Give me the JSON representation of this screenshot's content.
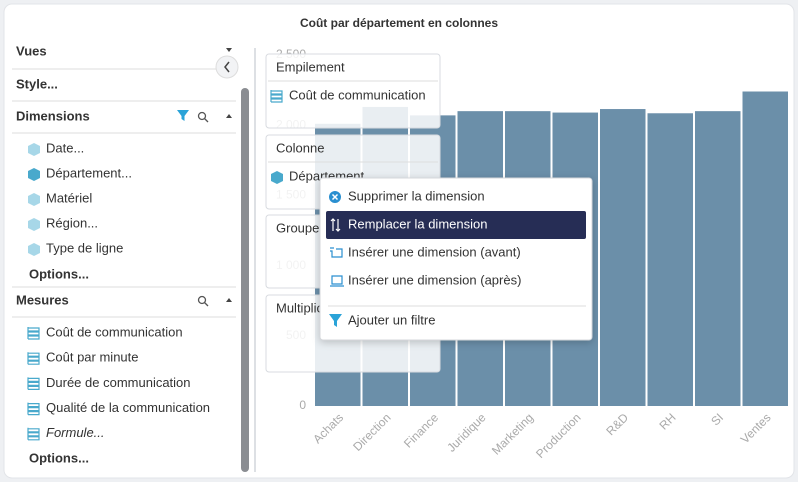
{
  "header": {
    "title": "Coût par département en colonnes"
  },
  "sidebar": {
    "vues": "Vues",
    "style": "Style...",
    "dimensions": {
      "title": "Dimensions",
      "items": [
        "Date...",
        "Département...",
        "Matériel",
        "Région...",
        "Type de ligne"
      ],
      "options": "Options..."
    },
    "mesures": {
      "title": "Mesures",
      "items": [
        "Coût de communication",
        "Coût par minute",
        "Durée de communication",
        "Qualité de la communication",
        "Formule..."
      ],
      "options": "Options..."
    }
  },
  "drop_zones": [
    {
      "label": "Empilement",
      "item": "Coût de communication"
    },
    {
      "label": "Colonne",
      "item": "Département"
    },
    {
      "label": "Groupement"
    },
    {
      "label": "Multiplicateur"
    }
  ],
  "context_menu": {
    "items": [
      "Supprimer la dimension",
      "Remplacer la dimension",
      "Insérer une dimension (avant)",
      "Insérer une dimension (après)",
      "Ajouter un filtre"
    ]
  },
  "chart_data": {
    "type": "bar",
    "categories": [
      "Achats",
      "Direction",
      "Finance",
      "Juridique",
      "Marketing",
      "Production",
      "R&D",
      "RH",
      "SI",
      "Ventes"
    ],
    "values": [
      2010,
      2130,
      2070,
      2100,
      2100,
      2090,
      2115,
      2085,
      2100,
      2240
    ],
    "color": "#6b8fa9",
    "ylim": [
      0,
      2500
    ],
    "yticks": [
      0,
      500,
      {
        "value": 1000,
        "label": "1 000"
      },
      {
        "value": 1500,
        "label": "1 500"
      },
      {
        "value": 2000,
        "label": "2 000"
      },
      {
        "value": 2500,
        "label": "2 500"
      }
    ]
  }
}
